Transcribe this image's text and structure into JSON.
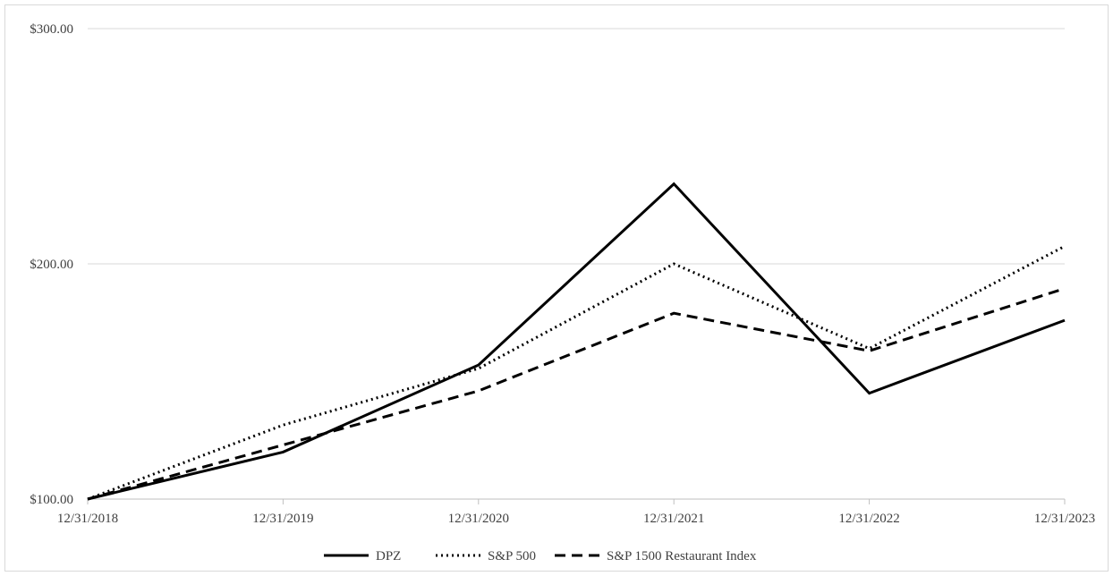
{
  "chart_data": {
    "type": "line",
    "title": "",
    "xlabel": "",
    "ylabel": "",
    "x": [
      "12/31/2018",
      "12/31/2019",
      "12/31/2020",
      "12/31/2021",
      "12/31/2022",
      "12/31/2023"
    ],
    "y_ticks": [
      "$100.00",
      "$200.00",
      "$300.00"
    ],
    "y_tick_values": [
      100,
      200,
      300
    ],
    "ylim": [
      100,
      300
    ],
    "grid": true,
    "legend_position": "bottom",
    "series": [
      {
        "name": "DPZ",
        "values": [
          100.0,
          120.0,
          157.0,
          234.0,
          145.0,
          176.0
        ],
        "line_style": "solid",
        "color": "#000000"
      },
      {
        "name": "S&P 500",
        "values": [
          100.0,
          131.5,
          155.5,
          200.0,
          164.0,
          207.5
        ],
        "line_style": "dotted",
        "color": "#000000"
      },
      {
        "name": "S&P 1500 Restaurant Index",
        "values": [
          100.0,
          123.0,
          146.0,
          179.0,
          163.0,
          189.5
        ],
        "line_style": "dashed",
        "color": "#000000"
      }
    ]
  }
}
